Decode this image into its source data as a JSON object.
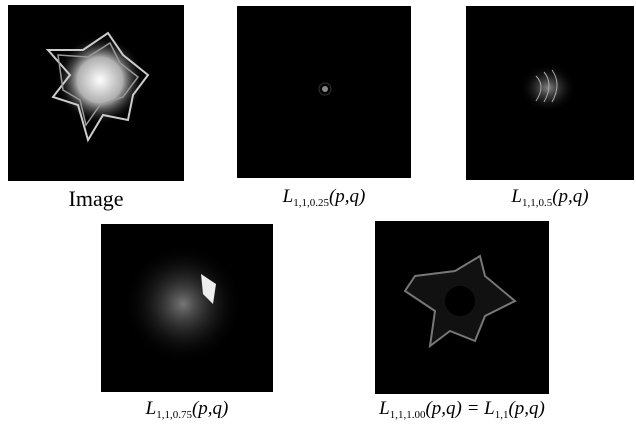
{
  "panels": [
    {
      "caption": [
        {
          "plain": "Image"
        }
      ]
    },
    {
      "caption": [
        {
          "t": "L"
        },
        {
          "sub": "1,1,0.25"
        },
        {
          "t": "(p,q)"
        }
      ]
    },
    {
      "caption": [
        {
          "t": "L"
        },
        {
          "sub": "1,1,0.5"
        },
        {
          "t": "(p,q)"
        }
      ]
    },
    {
      "caption": [
        {
          "t": "L"
        },
        {
          "sub": "1,1,0.75"
        },
        {
          "t": "(p,q)"
        }
      ]
    },
    {
      "caption": [
        {
          "t": "L"
        },
        {
          "sub": "1,1,1.00"
        },
        {
          "t": "(p,q) = L"
        },
        {
          "sub": "1,1"
        },
        {
          "t": "(p,q)"
        }
      ]
    }
  ]
}
